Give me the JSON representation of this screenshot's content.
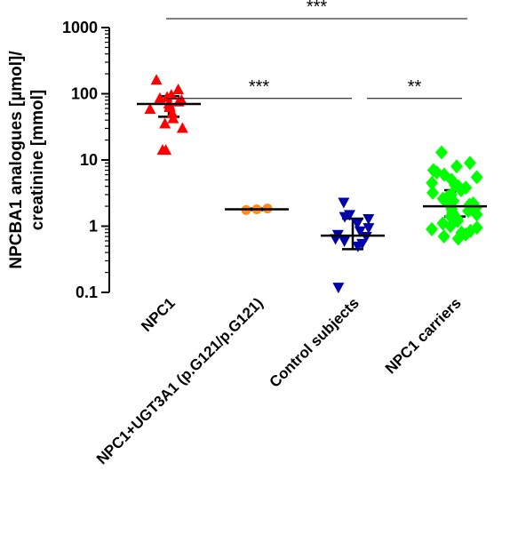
{
  "chart_data": {
    "type": "scatter",
    "ylabel_lines": [
      "NPCBA1 analogues [µmol]/",
      "creatinine [mmol]"
    ],
    "yscale": "log",
    "ylim": [
      0.1,
      1000
    ],
    "yticks": [
      {
        "value": 0.1,
        "label": "0.1"
      },
      {
        "value": 1,
        "label": "1"
      },
      {
        "value": 10,
        "label": "10"
      },
      {
        "value": 100,
        "label": "100"
      },
      {
        "value": 1000,
        "label": "1000"
      }
    ],
    "categories": [
      "NPC1",
      "NPC1+UGT3A1 (p.G121/p.G121)",
      "Control subjects",
      "NPC1 carriers"
    ],
    "series": [
      {
        "category": "NPC1",
        "marker": "triangle-up",
        "color": "#ff0000",
        "points": [
          160,
          115,
          95,
          88,
          85,
          80,
          75,
          70,
          65,
          62,
          58,
          50,
          42,
          35,
          30,
          14,
          14
        ],
        "median": 70,
        "error_low": 45,
        "error_high": 92
      },
      {
        "category": "NPC1+UGT3A1 (p.G121/p.G121)",
        "marker": "circle",
        "color": "#ff8c1a",
        "points": [
          1.75,
          1.8,
          1.85
        ],
        "median": 1.8,
        "error_low": 1.75,
        "error_high": 1.85
      },
      {
        "category": "Control subjects",
        "marker": "triangle-down",
        "color": "#0000aa",
        "points": [
          2.3,
          1.5,
          1.4,
          1.3,
          1.1,
          0.95,
          0.85,
          0.75,
          0.7,
          0.65,
          0.6,
          0.55,
          0.5,
          0.12
        ],
        "median": 0.72,
        "error_low": 0.45,
        "error_high": 1.3
      },
      {
        "category": "NPC1 carriers",
        "marker": "diamond",
        "color": "#00ff00",
        "points": [
          13,
          9,
          8,
          7,
          6.5,
          6,
          5.5,
          5,
          4.5,
          4.2,
          4,
          3.8,
          3.5,
          3.2,
          3,
          2.8,
          2.6,
          2.4,
          2.3,
          2.2,
          2.1,
          2.0,
          1.9,
          1.8,
          1.7,
          1.6,
          1.5,
          1.4,
          1.3,
          1.2,
          1.1,
          1.0,
          0.95,
          0.9,
          0.85,
          0.8,
          0.75,
          0.7,
          0.65
        ],
        "median": 2.0,
        "error_low": 1.4,
        "error_high": 3.5
      }
    ],
    "annotations": [
      {
        "from": 0,
        "to": 3,
        "text": "***",
        "y": 1000
      },
      {
        "from": 0,
        "to": 2,
        "text": "***",
        "y": 85
      },
      {
        "from": 2,
        "to": 3,
        "text": "**",
        "y": 85
      }
    ]
  }
}
